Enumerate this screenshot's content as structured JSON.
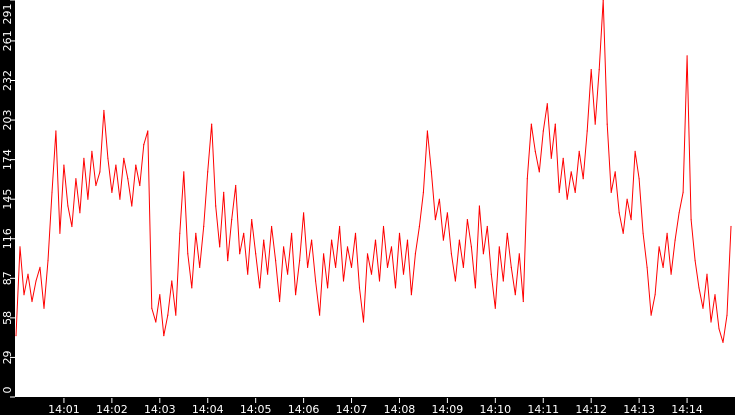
{
  "chart_data": {
    "type": "line",
    "title": "",
    "xlabel": "",
    "ylabel": "",
    "xlim": [
      "14:00",
      "14:15"
    ],
    "ylim": [
      0,
      291
    ],
    "x_tick_labels": [
      "14:01",
      "14:02",
      "14:03",
      "14:04",
      "14:05",
      "14:06",
      "14:07",
      "14:08",
      "14:09",
      "14:10",
      "14:11",
      "14:12",
      "14:13",
      "14:14"
    ],
    "y_tick_labels": [
      "0",
      "29",
      "58",
      "87",
      "116",
      "145",
      "174",
      "203",
      "232",
      "261",
      "291"
    ],
    "grid": false,
    "legend": "none",
    "colors": {
      "background": "#000000",
      "plot_area": "#ffffff",
      "series": "#ff0000",
      "text": "#ffffff"
    },
    "series": [
      {
        "values": [
          45,
          110,
          75,
          90,
          70,
          85,
          95,
          65,
          100,
          150,
          195,
          120,
          170,
          140,
          125,
          160,
          135,
          175,
          145,
          180,
          155,
          165,
          210,
          175,
          150,
          170,
          145,
          175,
          160,
          140,
          170,
          155,
          185,
          195,
          65,
          55,
          75,
          45,
          60,
          85,
          60,
          120,
          165,
          105,
          80,
          120,
          95,
          125,
          165,
          200,
          140,
          110,
          150,
          100,
          130,
          155,
          105,
          120,
          90,
          130,
          105,
          80,
          115,
          90,
          125,
          100,
          70,
          110,
          90,
          120,
          75,
          100,
          135,
          95,
          115,
          85,
          60,
          105,
          80,
          115,
          95,
          125,
          85,
          110,
          95,
          120,
          80,
          55,
          105,
          90,
          115,
          85,
          125,
          95,
          110,
          80,
          120,
          90,
          115,
          75,
          105,
          125,
          150,
          195,
          165,
          130,
          145,
          115,
          135,
          105,
          85,
          115,
          95,
          130,
          110,
          80,
          140,
          105,
          125,
          90,
          65,
          110,
          85,
          120,
          95,
          75,
          105,
          70,
          160,
          200,
          180,
          165,
          195,
          215,
          175,
          200,
          150,
          175,
          145,
          165,
          150,
          180,
          160,
          195,
          240,
          200,
          240,
          291,
          200,
          150,
          165,
          135,
          120,
          145,
          130,
          180,
          160,
          120,
          95,
          60,
          75,
          110,
          95,
          120,
          90,
          115,
          135,
          150,
          250,
          130,
          100,
          80,
          65,
          90,
          55,
          75,
          50,
          40,
          60,
          125
        ]
      }
    ]
  }
}
